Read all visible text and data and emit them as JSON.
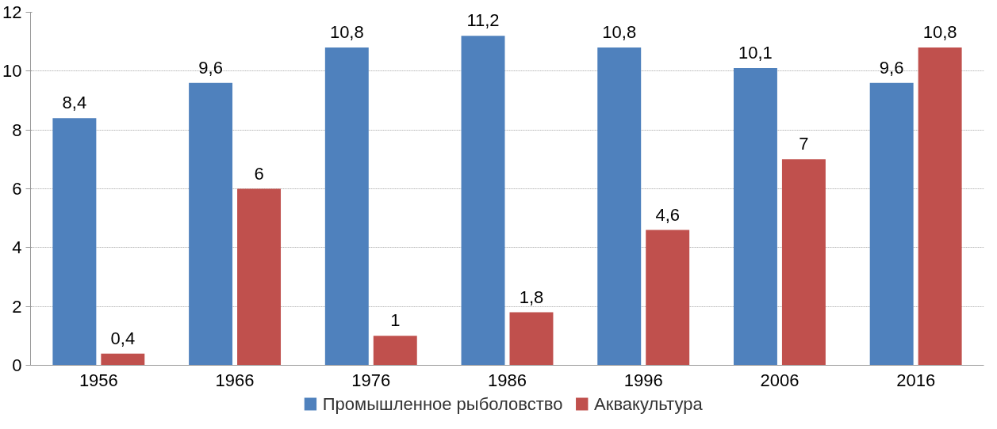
{
  "chart_data": {
    "type": "bar",
    "categories": [
      "1956",
      "1966",
      "1976",
      "1986",
      "1996",
      "2006",
      "2016"
    ],
    "series": [
      {
        "name": "Промышленное рыболовство",
        "color": "#4f81bd",
        "values": [
          8.4,
          9.6,
          10.8,
          11.2,
          10.8,
          10.1,
          9.6
        ],
        "value_labels": [
          "8,4",
          "9,6",
          "10,8",
          "11,2",
          "10,8",
          "10,1",
          "9,6"
        ]
      },
      {
        "name": "Аквакультура",
        "color": "#c0504d",
        "values": [
          0.4,
          6,
          1,
          1.8,
          4.6,
          7,
          10.8
        ],
        "value_labels": [
          "0,4",
          "6",
          "1",
          "1,8",
          "4,6",
          "7",
          "10,8"
        ]
      }
    ],
    "ylim": [
      0,
      12
    ],
    "yticks": [
      0,
      2,
      4,
      6,
      8,
      10,
      12
    ],
    "grid": "y",
    "legend": "bottom"
  }
}
